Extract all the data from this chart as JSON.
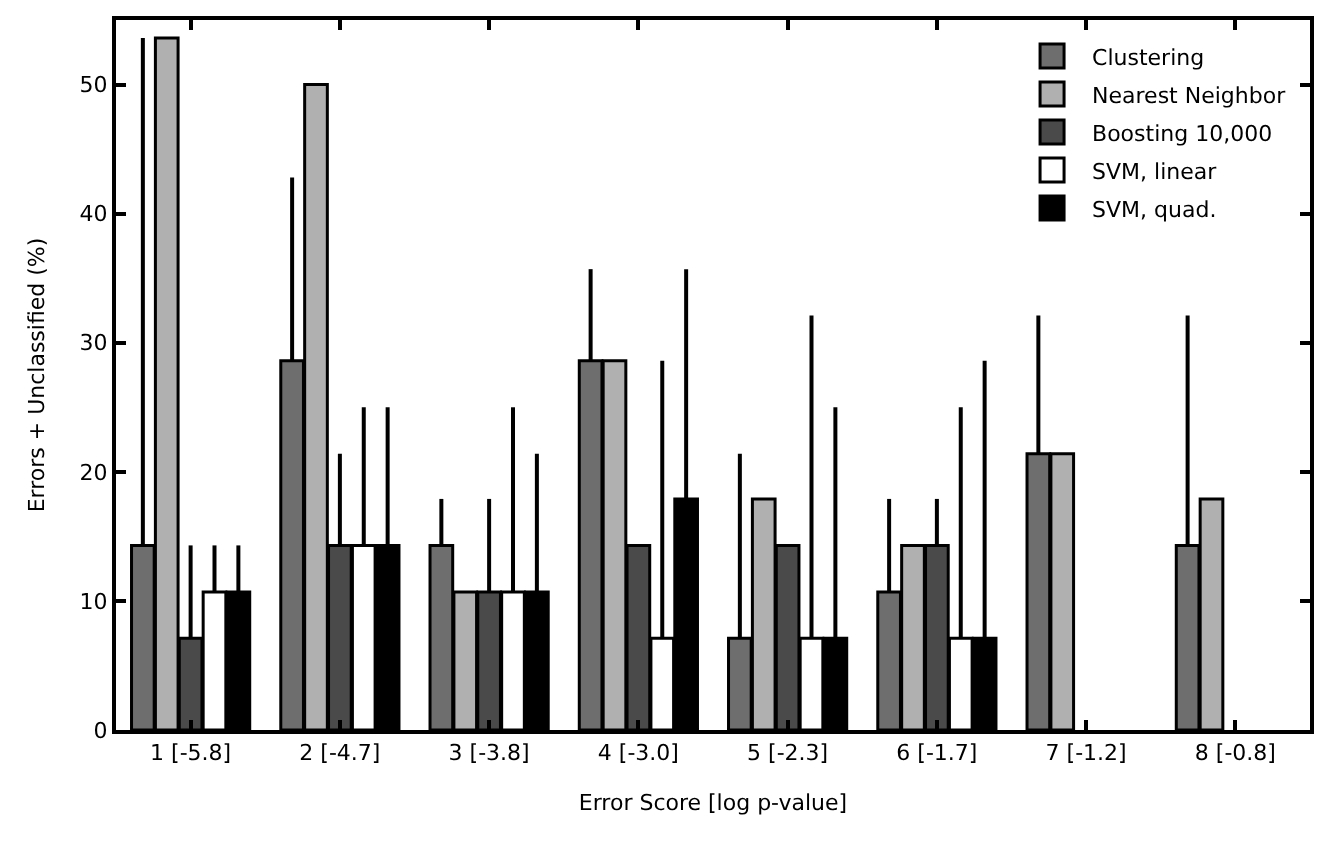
{
  "chart_data": {
    "type": "bar",
    "xlabel": "Error Score [log p-value]",
    "ylabel": "Errors + Unclassified (%)",
    "categories": [
      "1 [-5.8]",
      "2 [-4.7]",
      "3 [-3.8]",
      "4 [-3.0]",
      "5 [-2.3]",
      "6 [-1.7]",
      "7 [-1.2]",
      "8 [-0.8]"
    ],
    "series": [
      {
        "name": "Clustering",
        "color": "#6e6e6e",
        "values": [
          14.3,
          28.6,
          14.3,
          28.6,
          7.1,
          10.7,
          21.4,
          14.3
        ],
        "errors": [
          [
            14.3,
            53.6
          ],
          [
            28.6,
            42.8
          ],
          [
            14.3,
            17.9
          ],
          [
            28.6,
            35.7
          ],
          [
            7.1,
            21.4
          ],
          [
            10.7,
            17.9
          ],
          [
            21.4,
            32.1
          ],
          [
            14.3,
            32.1
          ]
        ]
      },
      {
        "name": "Nearest Neighbor",
        "color": "#b0b0b0",
        "values": [
          53.6,
          50,
          10.7,
          28.6,
          17.9,
          14.3,
          21.4,
          17.9
        ]
      },
      {
        "name": "Boosting 10,000",
        "color": "#4a4a4a",
        "values": [
          7.1,
          14.3,
          10.7,
          14.3,
          14.3,
          14.3,
          null,
          null
        ],
        "errors": [
          [
            7.1,
            14.3
          ],
          [
            14.3,
            21.4
          ],
          [
            10.7,
            17.9
          ],
          null,
          null,
          [
            14.3,
            17.9
          ],
          null,
          null
        ]
      },
      {
        "name": "SVM, linear",
        "color": "#ffffff",
        "values": [
          10.7,
          14.3,
          10.7,
          7.1,
          7.1,
          7.1,
          null,
          null
        ],
        "errors": [
          [
            10.7,
            14.3
          ],
          [
            14.3,
            25
          ],
          [
            10.7,
            25
          ],
          [
            7.1,
            28.6
          ],
          [
            7.1,
            32.1
          ],
          [
            7.1,
            25
          ],
          null,
          null
        ]
      },
      {
        "name": "SVM, quad.",
        "color": "#000000",
        "values": [
          10.7,
          14.3,
          10.7,
          17.9,
          7.1,
          7.1,
          null,
          null
        ],
        "errors": [
          [
            10.7,
            14.3
          ],
          [
            14.3,
            25
          ],
          [
            10.7,
            21.4
          ],
          [
            17.9,
            35.7
          ],
          [
            7.1,
            25
          ],
          [
            7.1,
            28.6
          ],
          null,
          null
        ]
      }
    ],
    "ylim": [
      0,
      55
    ],
    "yticks": [
      0,
      10,
      20,
      30,
      40,
      50
    ],
    "legend": "top right"
  }
}
